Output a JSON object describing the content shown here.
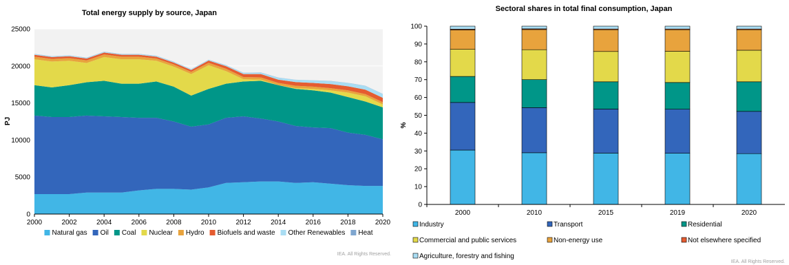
{
  "chart_data": [
    {
      "type": "area",
      "title": "Total energy supply by source, Japan",
      "ylabel": "PJ",
      "xlabel": "",
      "x": [
        2000,
        2001,
        2002,
        2003,
        2004,
        2005,
        2006,
        2007,
        2008,
        2009,
        2010,
        2011,
        2012,
        2013,
        2014,
        2015,
        2016,
        2017,
        2018,
        2019,
        2020
      ],
      "x_ticks": [
        "2000",
        "2002",
        "2004",
        "2006",
        "2008",
        "2010",
        "2012",
        "2014",
        "2016",
        "2018",
        "2020"
      ],
      "y_ticks": [
        "0",
        "5000",
        "10000",
        "15000",
        "20000",
        "25000"
      ],
      "ylim": [
        0,
        25000
      ],
      "stacked": true,
      "series": [
        {
          "name": "Natural gas",
          "color": "#41b6e6",
          "values": [
            2700,
            2700,
            2700,
            2900,
            2900,
            2900,
            3200,
            3400,
            3400,
            3300,
            3600,
            4200,
            4300,
            4400,
            4400,
            4200,
            4300,
            4100,
            3900,
            3800,
            3800
          ]
        },
        {
          "name": "Oil",
          "color": "#3366bb",
          "values": [
            10600,
            10400,
            10400,
            10400,
            10300,
            10200,
            9800,
            9600,
            9100,
            8500,
            8500,
            8800,
            8900,
            8500,
            8100,
            7700,
            7400,
            7500,
            7100,
            6900,
            6300
          ]
        },
        {
          "name": "Coal",
          "color": "#009688",
          "values": [
            4100,
            4000,
            4300,
            4500,
            4800,
            4500,
            4600,
            4900,
            4700,
            4200,
            4800,
            4600,
            4700,
            5100,
            4900,
            5000,
            5000,
            4800,
            4800,
            4500,
            4300
          ]
        },
        {
          "name": "Nuclear",
          "color": "#e3d94a",
          "values": [
            3500,
            3500,
            3300,
            2600,
            3200,
            3300,
            3300,
            2800,
            2700,
            2900,
            3200,
            1700,
            300,
            150,
            0,
            100,
            200,
            300,
            600,
            700,
            400
          ]
        },
        {
          "name": "Hydro",
          "color": "#e8a33d",
          "values": [
            350,
            350,
            350,
            350,
            350,
            350,
            350,
            300,
            300,
            300,
            320,
            320,
            300,
            300,
            300,
            320,
            300,
            300,
            300,
            300,
            300
          ]
        },
        {
          "name": "Biofuels and waste",
          "color": "#e55c30",
          "values": [
            250,
            250,
            250,
            250,
            250,
            250,
            250,
            250,
            250,
            250,
            300,
            350,
            400,
            450,
            450,
            500,
            500,
            550,
            550,
            600,
            600
          ]
        },
        {
          "name": "Other Renewables",
          "color": "#a9ddf3",
          "values": [
            100,
            100,
            100,
            100,
            100,
            100,
            100,
            100,
            100,
            100,
            100,
            120,
            150,
            200,
            250,
            300,
            350,
            400,
            450,
            500,
            500
          ]
        },
        {
          "name": "Heat",
          "color": "#7fa6cf",
          "values": [
            20,
            20,
            20,
            20,
            20,
            20,
            20,
            20,
            20,
            20,
            20,
            20,
            20,
            20,
            20,
            20,
            20,
            20,
            20,
            20,
            20
          ]
        }
      ],
      "legend_position": "bottom",
      "grid": true
    },
    {
      "type": "bar",
      "stacked": true,
      "title": "Sectoral shares in total final consumption, Japan",
      "ylabel": "%",
      "xlabel": "",
      "categories": [
        "2000",
        "2010",
        "2015",
        "2019",
        "2020"
      ],
      "y_ticks": [
        "0",
        "10",
        "20",
        "30",
        "40",
        "50",
        "60",
        "70",
        "80",
        "90",
        "100"
      ],
      "ylim": [
        0,
        100
      ],
      "series": [
        {
          "name": "Industry",
          "color": "#41b6e6",
          "values": [
            30.5,
            29.0,
            28.8,
            28.7,
            28.5
          ]
        },
        {
          "name": "Transport",
          "color": "#3366bb",
          "values": [
            26.7,
            25.3,
            24.7,
            24.7,
            23.7
          ]
        },
        {
          "name": "Residential",
          "color": "#009688",
          "values": [
            14.6,
            15.7,
            15.3,
            15.0,
            16.6
          ]
        },
        {
          "name": "Commercial and public services",
          "color": "#e3d94a",
          "values": [
            15.2,
            16.8,
            17.0,
            17.5,
            17.7
          ]
        },
        {
          "name": "Non-energy use",
          "color": "#e8a33d",
          "values": [
            10.9,
            11.3,
            12.2,
            12.1,
            11.5
          ]
        },
        {
          "name": "Not elsewhere specified",
          "color": "#e55c30",
          "values": [
            0.4,
            0.4,
            0.4,
            0.4,
            0.4
          ]
        },
        {
          "name": "Agriculture, forestry and fishing",
          "color": "#a9ddf3",
          "values": [
            1.7,
            1.5,
            1.6,
            1.6,
            1.6
          ]
        }
      ],
      "legend_position": "bottom"
    }
  ],
  "footer": {
    "left_rights": "IEA. All Rights Reserved.",
    "right_rights": "IEA. All Rights Reserved."
  }
}
